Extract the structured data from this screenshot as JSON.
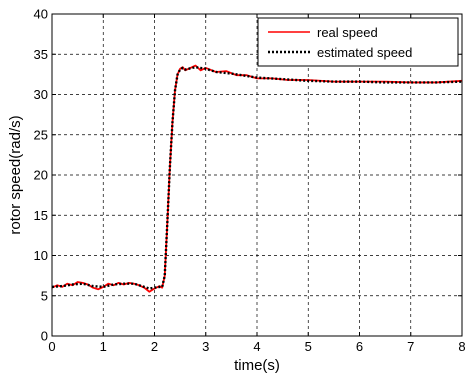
{
  "chart_data": {
    "type": "line",
    "title": "",
    "xlabel": "time(s)",
    "ylabel": "rotor speed(rad/s)",
    "xlim": [
      0,
      8
    ],
    "ylim": [
      0,
      40
    ],
    "xticks": [
      "0",
      "1",
      "2",
      "3",
      "4",
      "5",
      "6",
      "7",
      "8"
    ],
    "yticks": [
      "0",
      "5",
      "10",
      "15",
      "20",
      "25",
      "30",
      "35",
      "40"
    ],
    "grid": true,
    "legend_position": "top-right",
    "series": [
      {
        "name": "real speed",
        "color": "#ff0000",
        "style": "solid",
        "x": [
          0,
          0.1,
          0.2,
          0.3,
          0.4,
          0.5,
          0.6,
          0.7,
          0.8,
          0.9,
          1.0,
          1.1,
          1.2,
          1.3,
          1.4,
          1.5,
          1.6,
          1.7,
          1.8,
          1.9,
          2.0,
          2.1,
          2.15,
          2.2,
          2.25,
          2.3,
          2.35,
          2.4,
          2.45,
          2.5,
          2.55,
          2.6,
          2.7,
          2.8,
          2.9,
          3.0,
          3.2,
          3.4,
          3.6,
          3.8,
          4.0,
          4.3,
          4.6,
          5.0,
          5.5,
          6.0,
          6.5,
          7.0,
          7.5,
          8.0
        ],
        "y": [
          6.0,
          6.3,
          6.1,
          6.5,
          6.3,
          6.7,
          6.6,
          6.4,
          6.0,
          5.8,
          6.1,
          6.5,
          6.3,
          6.6,
          6.4,
          6.6,
          6.5,
          6.3,
          6.0,
          5.5,
          5.9,
          6.2,
          6.0,
          7.5,
          14.0,
          21.0,
          26.5,
          30.5,
          32.5,
          33.2,
          33.4,
          33.0,
          33.3,
          33.6,
          33.0,
          33.3,
          32.8,
          32.9,
          32.4,
          32.4,
          32.0,
          32.0,
          31.8,
          31.8,
          31.6,
          31.6,
          31.6,
          31.5,
          31.5,
          31.7
        ]
      },
      {
        "name": "estimated speed",
        "color": "#000000",
        "style": "dotted",
        "x": [
          0,
          0.2,
          0.4,
          0.6,
          0.8,
          1.0,
          1.2,
          1.4,
          1.6,
          1.8,
          1.9,
          2.0,
          2.1,
          2.15,
          2.2,
          2.25,
          2.3,
          2.35,
          2.4,
          2.45,
          2.5,
          2.55,
          2.6,
          2.8,
          3.0,
          3.2,
          3.5,
          4.0,
          4.5,
          5.0,
          5.5,
          6.0,
          6.5,
          7.0,
          7.5,
          8.0
        ],
        "y": [
          6.1,
          6.2,
          6.4,
          6.5,
          6.2,
          6.1,
          6.4,
          6.5,
          6.5,
          6.1,
          5.9,
          6.0,
          6.1,
          6.1,
          7.5,
          14.0,
          21.0,
          26.5,
          30.5,
          32.5,
          33.1,
          33.3,
          33.1,
          33.4,
          33.2,
          32.8,
          32.6,
          32.1,
          31.9,
          31.7,
          31.6,
          31.6,
          31.5,
          31.5,
          31.5,
          31.6
        ]
      }
    ]
  }
}
